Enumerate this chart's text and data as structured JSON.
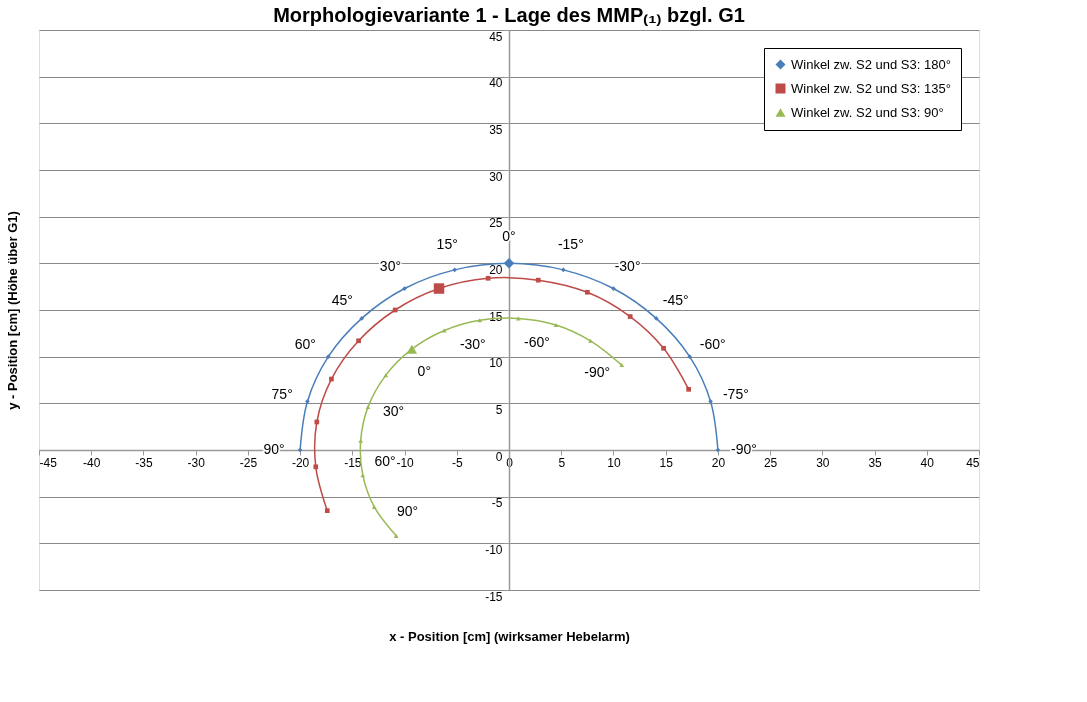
{
  "chart_data": {
    "type": "line",
    "title": "Morphologievariante 1 - Lage des MMP₍₁₎ bzgl. G1",
    "xlabel": "x - Position [cm] (wirksamer Hebelarm)",
    "ylabel": "y - Position [cm] (Höhe über G1)",
    "xlim": [
      -45,
      45
    ],
    "xticks": [
      -45,
      -40,
      -35,
      -30,
      -25,
      -20,
      -15,
      -10,
      -5,
      0,
      5,
      10,
      15,
      20,
      25,
      30,
      35,
      40,
      45
    ],
    "ylim": [
      -15,
      45
    ],
    "yticks": [
      -15,
      -10,
      -5,
      0,
      5,
      10,
      15,
      20,
      25,
      30,
      35,
      40,
      45
    ],
    "grid": "y",
    "legend": "top right",
    "series": [
      {
        "name": "Winkel zw. S2 und S3: 180°",
        "color": "#4a7ebb",
        "marker": "diamond",
        "x": [
          -20,
          -19.3,
          -17.3,
          -14.1,
          -10,
          -5.2,
          0,
          5.2,
          10,
          14.1,
          17.3,
          19.3,
          20
        ],
        "values": [
          0,
          5.2,
          10,
          14.1,
          17.3,
          19.3,
          20,
          19.3,
          17.3,
          14.1,
          10,
          5.2,
          0
        ]
      },
      {
        "name": "Winkel zw. S2 und S3: 135°",
        "color": "#be4b48",
        "marker": "square",
        "x": [
          -17.4,
          -18.5,
          -18.4,
          -17.0,
          -14.4,
          -10.9,
          -6.7,
          -2.0,
          2.8,
          7.5,
          11.6,
          14.8,
          17.2
        ],
        "values": [
          -6.5,
          -1.8,
          3.0,
          7.6,
          11.7,
          15.0,
          17.3,
          18.4,
          18.2,
          16.9,
          14.3,
          10.9,
          6.5
        ]
      },
      {
        "name": "Winkel zw. S2 und S3: 90°",
        "color": "#98b954",
        "marker": "triangle",
        "x": [
          -10.8,
          -12.9,
          -14.0,
          -14.2,
          -13.5,
          -11.8,
          -9.3,
          -6.2,
          -2.8,
          0.9,
          4.5,
          7.8,
          10.8
        ],
        "values": [
          -9.2,
          -6.1,
          -2.7,
          1.0,
          4.6,
          8.0,
          10.8,
          12.8,
          13.9,
          14.1,
          13.4,
          11.7,
          9.1
        ]
      }
    ],
    "annotations": [
      {
        "text": "90°",
        "x": -20,
        "y": 0
      },
      {
        "text": "75°",
        "x": -19.3,
        "y": 5.2
      },
      {
        "text": "60°",
        "x": -17.3,
        "y": 10
      },
      {
        "text": "45°",
        "x": -14.1,
        "y": 14.1
      },
      {
        "text": "30°",
        "x": -10,
        "y": 17.3
      },
      {
        "text": "15°",
        "x": -5.2,
        "y": 19.3
      },
      {
        "text": "0°",
        "x": 0,
        "y": 20
      },
      {
        "text": "-15°",
        "x": 5.2,
        "y": 19.3
      },
      {
        "text": "-30°",
        "x": 10,
        "y": 17.3
      },
      {
        "text": "-45°",
        "x": 14.1,
        "y": 14.1
      },
      {
        "text": "-60°",
        "x": 17.3,
        "y": 10
      },
      {
        "text": "-75°",
        "x": 19.3,
        "y": 5.2
      },
      {
        "text": "-90°",
        "x": 20,
        "y": 0
      },
      {
        "text": "90°",
        "x": -10.8,
        "y": -9.2
      },
      {
        "text": "60°",
        "x": -14.0,
        "y": -2.7
      },
      {
        "text": "30°",
        "x": -13.5,
        "y": 4.6
      },
      {
        "text": "0°",
        "x": -9.3,
        "y": 10.8
      },
      {
        "text": "-30°",
        "x": -2.8,
        "y": 13.9
      },
      {
        "text": "-60°",
        "x": 4.5,
        "y": 13.4
      },
      {
        "text": "-90°",
        "x": 10.8,
        "y": 9.1
      }
    ]
  }
}
